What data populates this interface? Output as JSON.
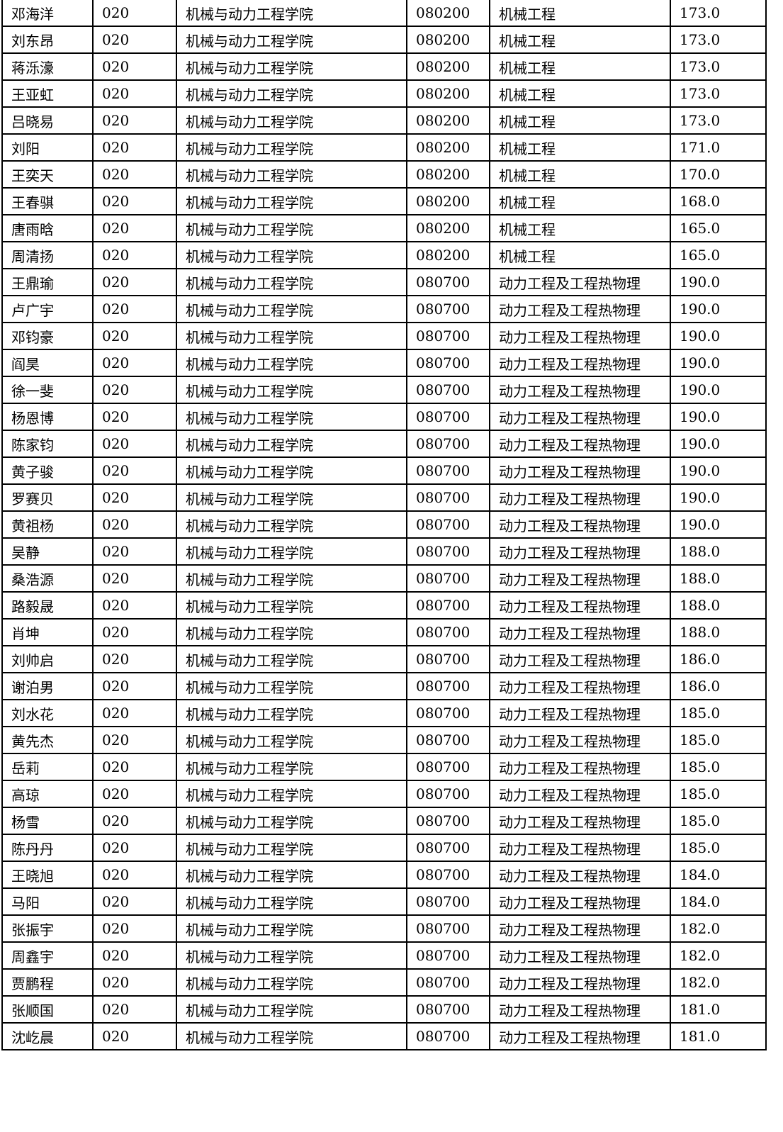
{
  "table": {
    "rows": [
      [
        "邓海洋",
        "020",
        "机械与动力工程学院",
        "080200",
        "机械工程",
        "173.0"
      ],
      [
        "刘东昂",
        "020",
        "机械与动力工程学院",
        "080200",
        "机械工程",
        "173.0"
      ],
      [
        "蒋泺濠",
        "020",
        "机械与动力工程学院",
        "080200",
        "机械工程",
        "173.0"
      ],
      [
        "王亚虹",
        "020",
        "机械与动力工程学院",
        "080200",
        "机械工程",
        "173.0"
      ],
      [
        "吕晓易",
        "020",
        "机械与动力工程学院",
        "080200",
        "机械工程",
        "173.0"
      ],
      [
        "刘阳",
        "020",
        "机械与动力工程学院",
        "080200",
        "机械工程",
        "171.0"
      ],
      [
        "王奕天",
        "020",
        "机械与动力工程学院",
        "080200",
        "机械工程",
        "170.0"
      ],
      [
        "王春骐",
        "020",
        "机械与动力工程学院",
        "080200",
        "机械工程",
        "168.0"
      ],
      [
        "唐雨晗",
        "020",
        "机械与动力工程学院",
        "080200",
        "机械工程",
        "165.0"
      ],
      [
        "周清扬",
        "020",
        "机械与动力工程学院",
        "080200",
        "机械工程",
        "165.0"
      ],
      [
        "王鼎瑜",
        "020",
        "机械与动力工程学院",
        "080700",
        "动力工程及工程热物理",
        "190.0"
      ],
      [
        "卢广宇",
        "020",
        "机械与动力工程学院",
        "080700",
        "动力工程及工程热物理",
        "190.0"
      ],
      [
        "邓钧豪",
        "020",
        "机械与动力工程学院",
        "080700",
        "动力工程及工程热物理",
        "190.0"
      ],
      [
        "阎昊",
        "020",
        "机械与动力工程学院",
        "080700",
        "动力工程及工程热物理",
        "190.0"
      ],
      [
        "徐一斐",
        "020",
        "机械与动力工程学院",
        "080700",
        "动力工程及工程热物理",
        "190.0"
      ],
      [
        "杨恩博",
        "020",
        "机械与动力工程学院",
        "080700",
        "动力工程及工程热物理",
        "190.0"
      ],
      [
        "陈家钧",
        "020",
        "机械与动力工程学院",
        "080700",
        "动力工程及工程热物理",
        "190.0"
      ],
      [
        "黄子骏",
        "020",
        "机械与动力工程学院",
        "080700",
        "动力工程及工程热物理",
        "190.0"
      ],
      [
        "罗赛贝",
        "020",
        "机械与动力工程学院",
        "080700",
        "动力工程及工程热物理",
        "190.0"
      ],
      [
        "黄祖杨",
        "020",
        "机械与动力工程学院",
        "080700",
        "动力工程及工程热物理",
        "190.0"
      ],
      [
        "吴静",
        "020",
        "机械与动力工程学院",
        "080700",
        "动力工程及工程热物理",
        "188.0"
      ],
      [
        "桑浩源",
        "020",
        "机械与动力工程学院",
        "080700",
        "动力工程及工程热物理",
        "188.0"
      ],
      [
        "路毅晟",
        "020",
        "机械与动力工程学院",
        "080700",
        "动力工程及工程热物理",
        "188.0"
      ],
      [
        "肖坤",
        "020",
        "机械与动力工程学院",
        "080700",
        "动力工程及工程热物理",
        "188.0"
      ],
      [
        "刘帅启",
        "020",
        "机械与动力工程学院",
        "080700",
        "动力工程及工程热物理",
        "186.0"
      ],
      [
        "谢泊男",
        "020",
        "机械与动力工程学院",
        "080700",
        "动力工程及工程热物理",
        "186.0"
      ],
      [
        "刘水花",
        "020",
        "机械与动力工程学院",
        "080700",
        "动力工程及工程热物理",
        "185.0"
      ],
      [
        "黄先杰",
        "020",
        "机械与动力工程学院",
        "080700",
        "动力工程及工程热物理",
        "185.0"
      ],
      [
        "岳莉",
        "020",
        "机械与动力工程学院",
        "080700",
        "动力工程及工程热物理",
        "185.0"
      ],
      [
        "高琼",
        "020",
        "机械与动力工程学院",
        "080700",
        "动力工程及工程热物理",
        "185.0"
      ],
      [
        "杨雪",
        "020",
        "机械与动力工程学院",
        "080700",
        "动力工程及工程热物理",
        "185.0"
      ],
      [
        "陈丹丹",
        "020",
        "机械与动力工程学院",
        "080700",
        "动力工程及工程热物理",
        "185.0"
      ],
      [
        "王晓旭",
        "020",
        "机械与动力工程学院",
        "080700",
        "动力工程及工程热物理",
        "184.0"
      ],
      [
        "马阳",
        "020",
        "机械与动力工程学院",
        "080700",
        "动力工程及工程热物理",
        "184.0"
      ],
      [
        "张振宇",
        "020",
        "机械与动力工程学院",
        "080700",
        "动力工程及工程热物理",
        "182.0"
      ],
      [
        "周鑫宇",
        "020",
        "机械与动力工程学院",
        "080700",
        "动力工程及工程热物理",
        "182.0"
      ],
      [
        "贾鹏程",
        "020",
        "机械与动力工程学院",
        "080700",
        "动力工程及工程热物理",
        "182.0"
      ],
      [
        "张顺国",
        "020",
        "机械与动力工程学院",
        "080700",
        "动力工程及工程热物理",
        "181.0"
      ],
      [
        "沈屹晨",
        "020",
        "机械与动力工程学院",
        "080700",
        "动力工程及工程热物理",
        "181.0"
      ]
    ]
  }
}
